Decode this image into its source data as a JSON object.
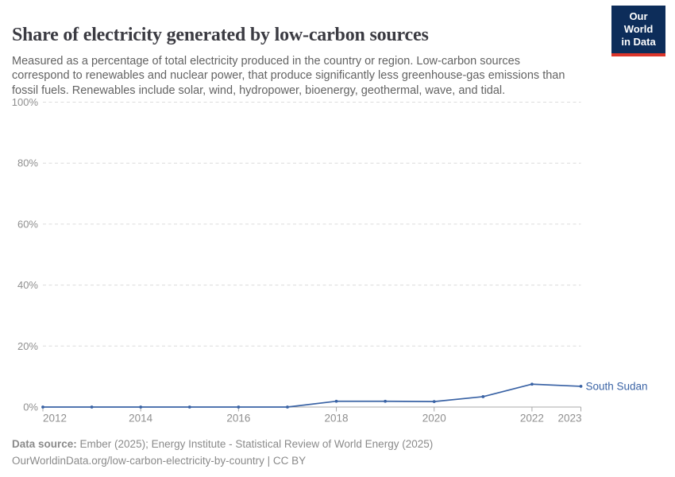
{
  "header": {
    "title": "Share of electricity generated by low-carbon sources",
    "subtitle": "Measured as a percentage of total electricity produced in the country or region. Low-carbon sources correspond to renewables and nuclear power, that produce significantly less greenhouse-gas emissions than fossil fuels. Renewables include solar, wind, hydropower, bioenergy, geothermal, wave, and tidal.",
    "logo": {
      "line1": "Our World",
      "line2": "in Data"
    }
  },
  "chart_data": {
    "type": "line",
    "title": "Share of electricity generated by low-carbon sources",
    "unit": "%",
    "x": [
      2012,
      2013,
      2014,
      2015,
      2016,
      2017,
      2018,
      2019,
      2020,
      2021,
      2022,
      2023
    ],
    "series": [
      {
        "name": "South Sudan",
        "color": "#3a63a5",
        "values": [
          0,
          0,
          0,
          0,
          0,
          0,
          1.9,
          1.9,
          1.8,
          3.4,
          7.5,
          6.8
        ]
      }
    ],
    "xlabel": "",
    "ylabel": "",
    "ylim": [
      0,
      100
    ],
    "yticks": [
      0,
      20,
      40,
      60,
      80,
      100
    ],
    "ytick_suffix": "%",
    "xticks": [
      2012,
      2014,
      2016,
      2018,
      2020,
      2022,
      2023
    ],
    "grid": "horizontal-dashed",
    "legend_position": "line-end"
  },
  "footer": {
    "source_label": "Data source: ",
    "source_text": "Ember (2025); Energy Institute - Statistical Review of World Energy (2025)",
    "link_line": "OurWorldinData.org/low-carbon-electricity-by-country | CC BY"
  },
  "colors": {
    "accent_line": "#3a63a5",
    "logo_bg": "#0d2d5a",
    "logo_red": "#dc352a",
    "grid": "#dcdcdc",
    "axis": "#a8a8a8",
    "tick_label": "#8f8f8f",
    "title_text": "#3b3b42",
    "subtitle_text": "#636363",
    "footer_text": "#8a8a8a"
  }
}
